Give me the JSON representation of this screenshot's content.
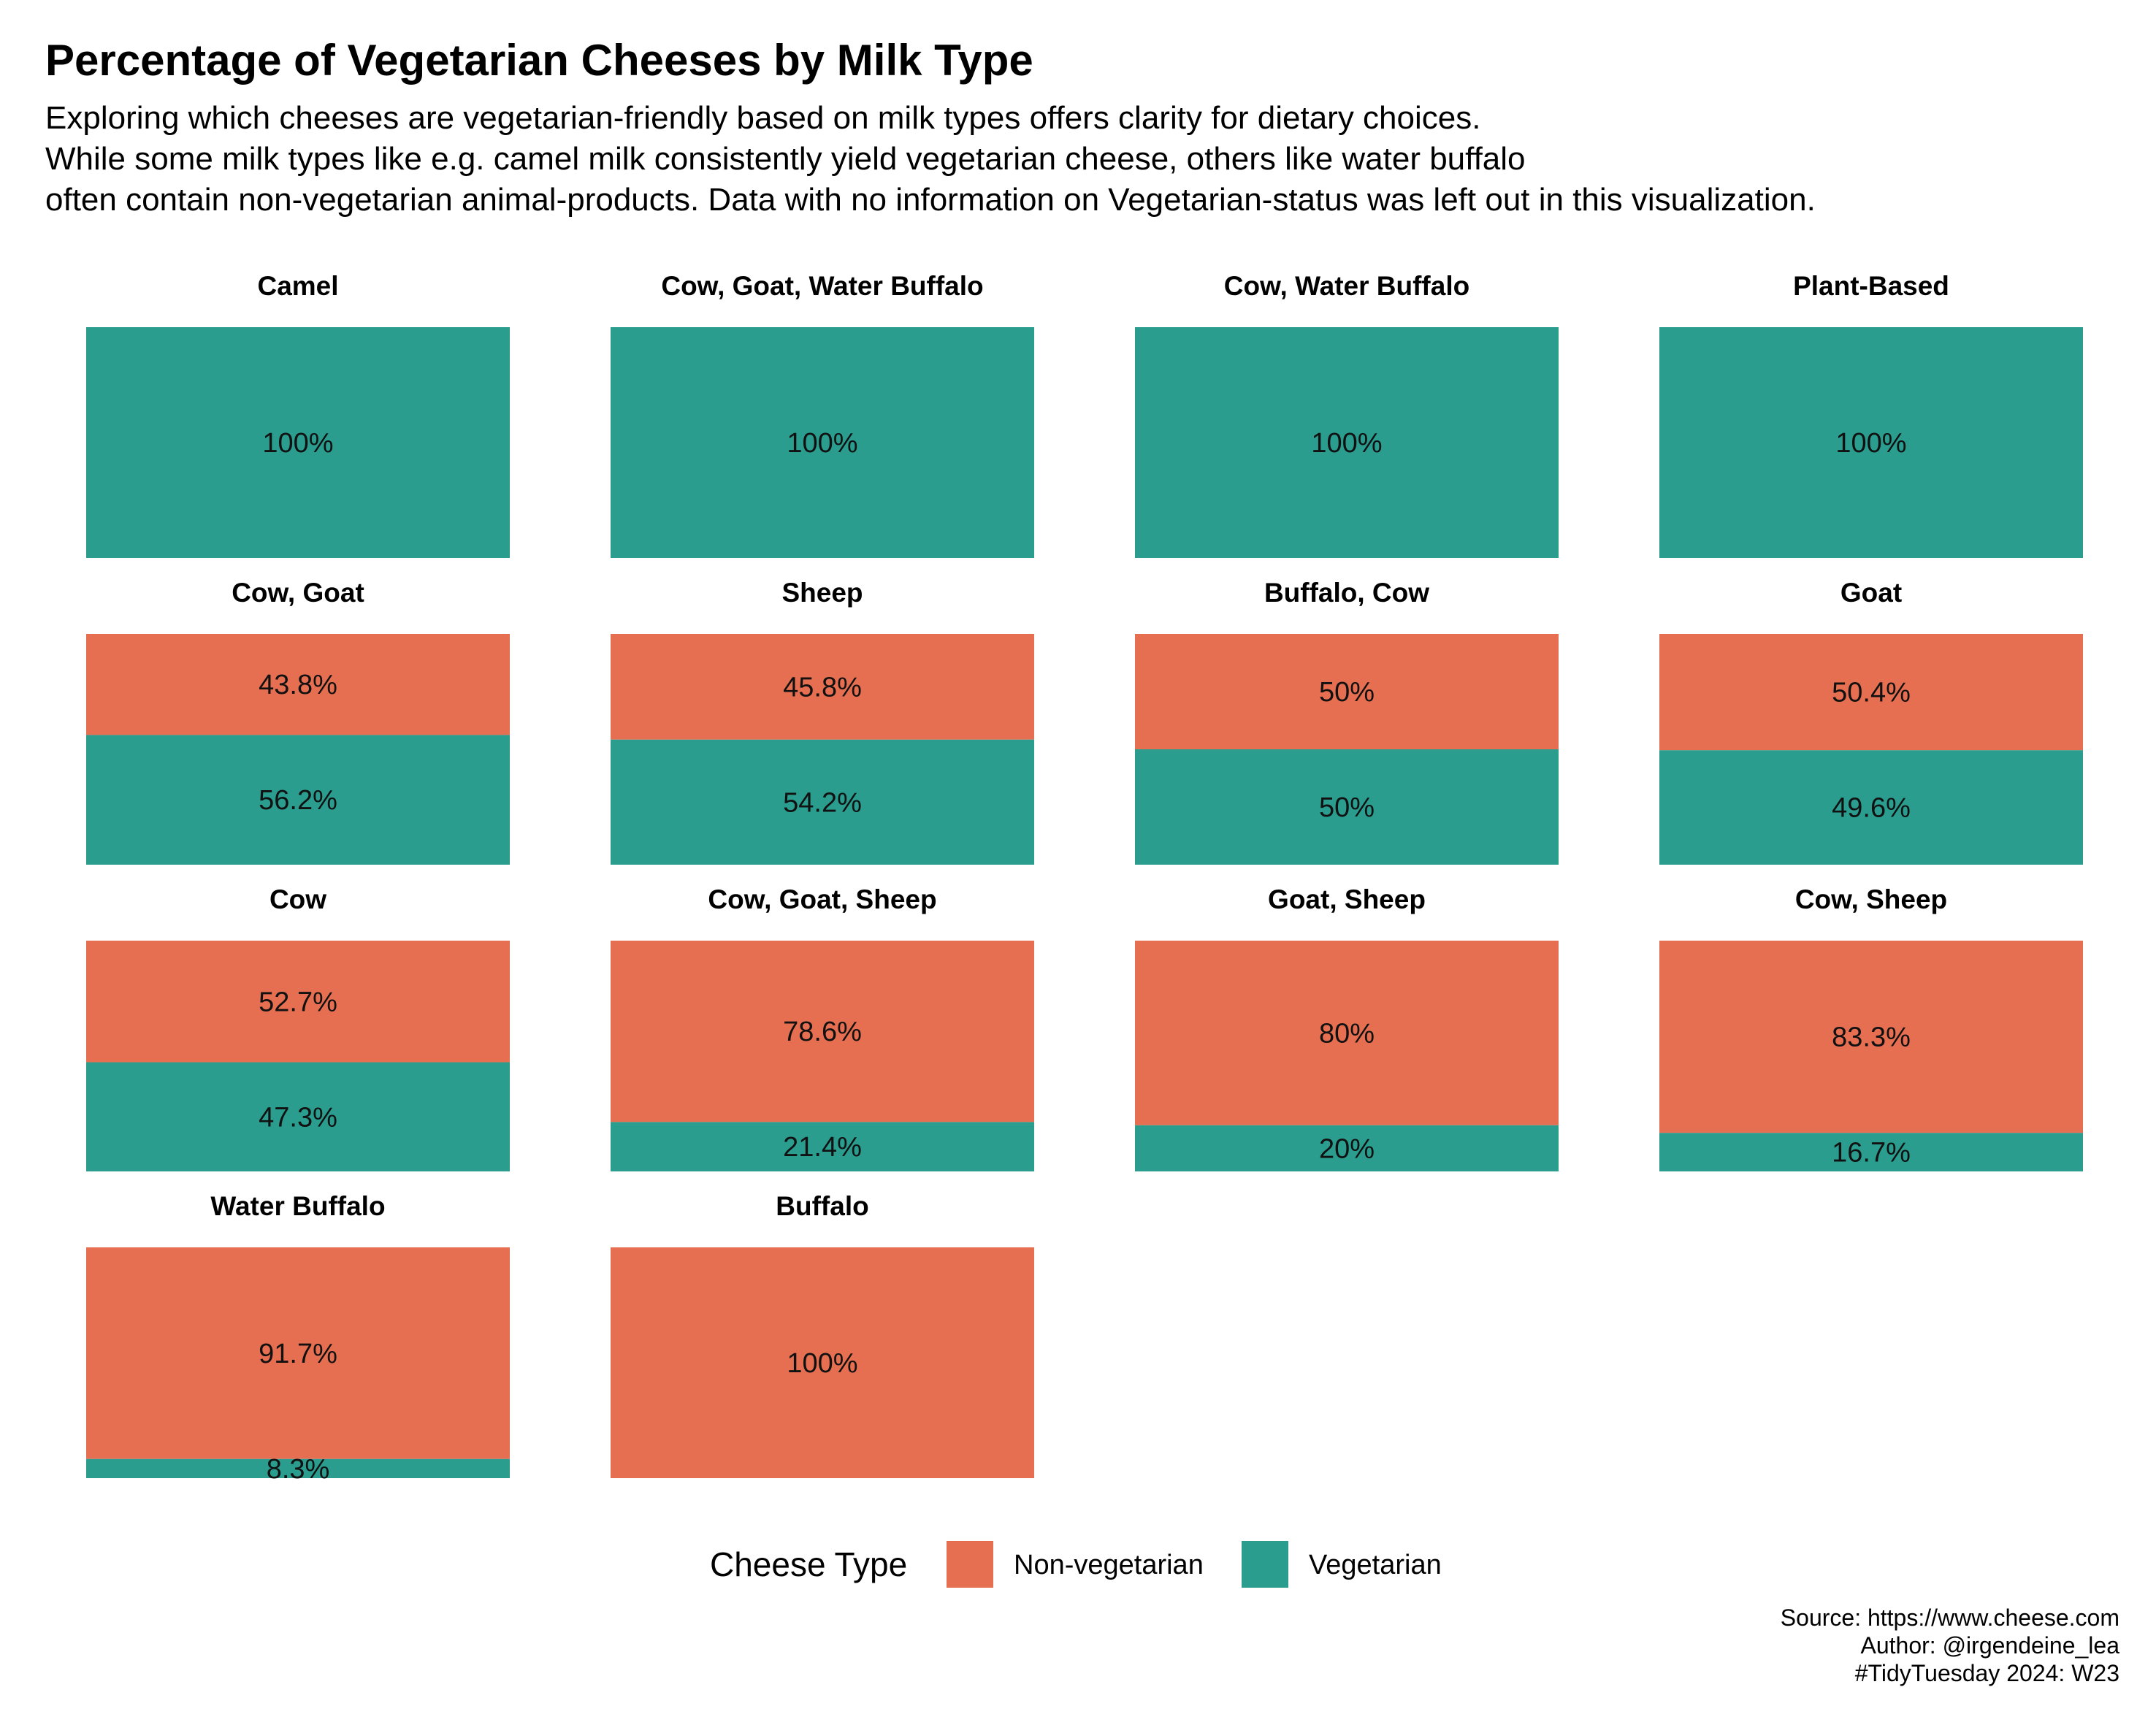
{
  "header": {
    "title": "Percentage of Vegetarian Cheeses by Milk Type",
    "subtitle_lines": [
      "Exploring which cheeses are vegetarian-friendly based on milk types offers clarity for dietary choices.",
      "While some milk types like e.g. camel milk consistently yield vegetarian cheese, others like water buffalo",
      "often contain non-vegetarian animal-products. Data with no information on Vegetarian-status was left out in this visualization."
    ]
  },
  "caption": {
    "lines": [
      "Source: https://www.cheese.com",
      "Author: @irgendeine_lea",
      "#TidyTuesday 2024: W23"
    ]
  },
  "colors": {
    "non_vegetarian": "#E76F51",
    "vegetarian": "#2A9D8F"
  },
  "chart_data": {
    "type": "bar",
    "layout": "faceted stacked 100% bars",
    "legend": {
      "title": "Cheese Type",
      "position": "bottom",
      "entries": [
        "Non-vegetarian",
        "Vegetarian"
      ]
    },
    "grid": false,
    "facets": [
      {
        "milk": "Camel",
        "non_vegetarian": 0,
        "vegetarian": 100,
        "non_vegetarian_label": "",
        "vegetarian_label": "100%"
      },
      {
        "milk": "Cow, Goat, Water Buffalo",
        "non_vegetarian": 0,
        "vegetarian": 100,
        "non_vegetarian_label": "",
        "vegetarian_label": "100%"
      },
      {
        "milk": "Cow, Water Buffalo",
        "non_vegetarian": 0,
        "vegetarian": 100,
        "non_vegetarian_label": "",
        "vegetarian_label": "100%"
      },
      {
        "milk": "Plant-Based",
        "non_vegetarian": 0,
        "vegetarian": 100,
        "non_vegetarian_label": "",
        "vegetarian_label": "100%"
      },
      {
        "milk": "Cow, Goat",
        "non_vegetarian": 43.8,
        "vegetarian": 56.2,
        "non_vegetarian_label": "43.8%",
        "vegetarian_label": "56.2%"
      },
      {
        "milk": "Sheep",
        "non_vegetarian": 45.8,
        "vegetarian": 54.2,
        "non_vegetarian_label": "45.8%",
        "vegetarian_label": "54.2%"
      },
      {
        "milk": "Buffalo, Cow",
        "non_vegetarian": 50,
        "vegetarian": 50,
        "non_vegetarian_label": "50%",
        "vegetarian_label": "50%"
      },
      {
        "milk": "Goat",
        "non_vegetarian": 50.4,
        "vegetarian": 49.6,
        "non_vegetarian_label": "50.4%",
        "vegetarian_label": "49.6%"
      },
      {
        "milk": "Cow",
        "non_vegetarian": 52.7,
        "vegetarian": 47.3,
        "non_vegetarian_label": "52.7%",
        "vegetarian_label": "47.3%"
      },
      {
        "milk": "Cow, Goat, Sheep",
        "non_vegetarian": 78.6,
        "vegetarian": 21.4,
        "non_vegetarian_label": "78.6%",
        "vegetarian_label": "21.4%"
      },
      {
        "milk": "Goat, Sheep",
        "non_vegetarian": 80,
        "vegetarian": 20,
        "non_vegetarian_label": "80%",
        "vegetarian_label": "20%"
      },
      {
        "milk": "Cow, Sheep",
        "non_vegetarian": 83.3,
        "vegetarian": 16.7,
        "non_vegetarian_label": "83.3%",
        "vegetarian_label": "16.7%"
      },
      {
        "milk": "Water Buffalo",
        "non_vegetarian": 91.7,
        "vegetarian": 8.3,
        "non_vegetarian_label": "91.7%",
        "vegetarian_label": "8.3%"
      },
      {
        "milk": "Buffalo",
        "non_vegetarian": 100,
        "vegetarian": 0,
        "non_vegetarian_label": "100%",
        "vegetarian_label": ""
      }
    ]
  }
}
